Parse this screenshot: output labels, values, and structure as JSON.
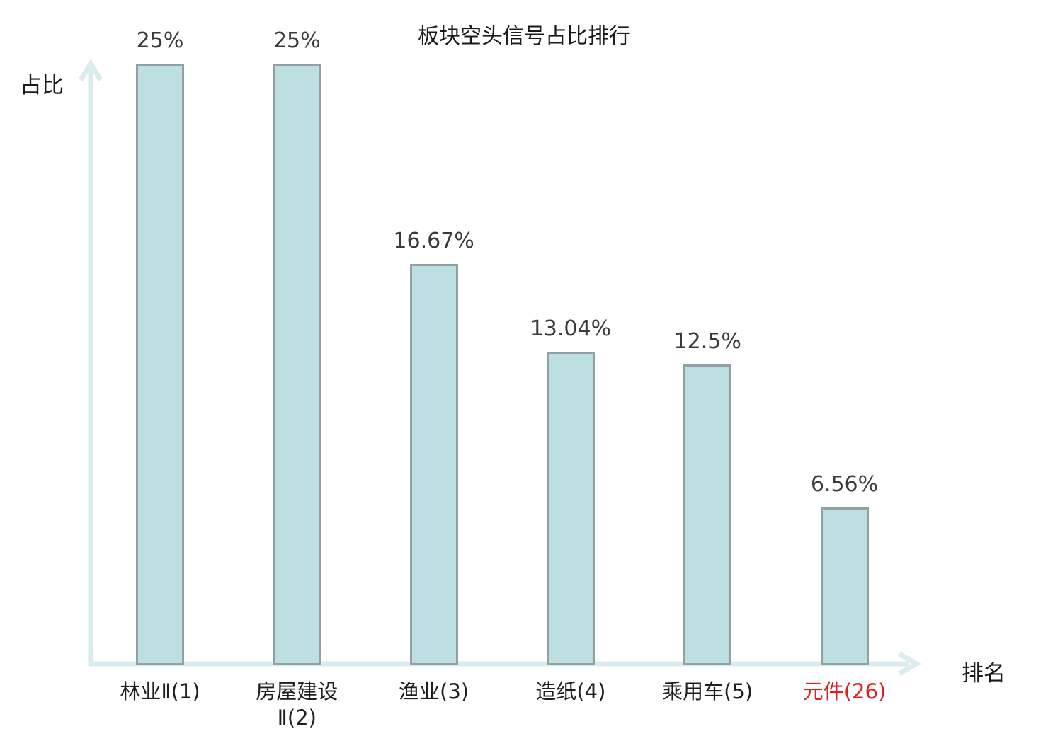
{
  "chart_data": {
    "type": "bar",
    "title": "板块空头信号占比排行",
    "xlabel": "排名",
    "ylabel": "占比",
    "ylim": [
      0,
      25
    ],
    "grid": false,
    "legend": "none",
    "categories": [
      "林业Ⅱ(1)",
      "房屋建设\nⅡ(2)",
      "渔业(3)",
      "造纸(4)",
      "乘用车(5)",
      "元件(26)"
    ],
    "values": [
      25,
      25,
      16.67,
      13.04,
      12.5,
      6.56
    ],
    "value_labels": [
      "25%",
      "25%",
      "16.67%",
      "13.04%",
      "12.5%",
      "6.56%"
    ],
    "highlight_index": 5,
    "colors": {
      "bar_fill": "#bedfe2",
      "bar_border": "#91a0a3",
      "axis": "#d9edee",
      "value_text": "#3a3a3a",
      "category_text": "#1e1e1e",
      "highlight_text": "#e02020",
      "title_text": "#1a1a1a"
    }
  }
}
